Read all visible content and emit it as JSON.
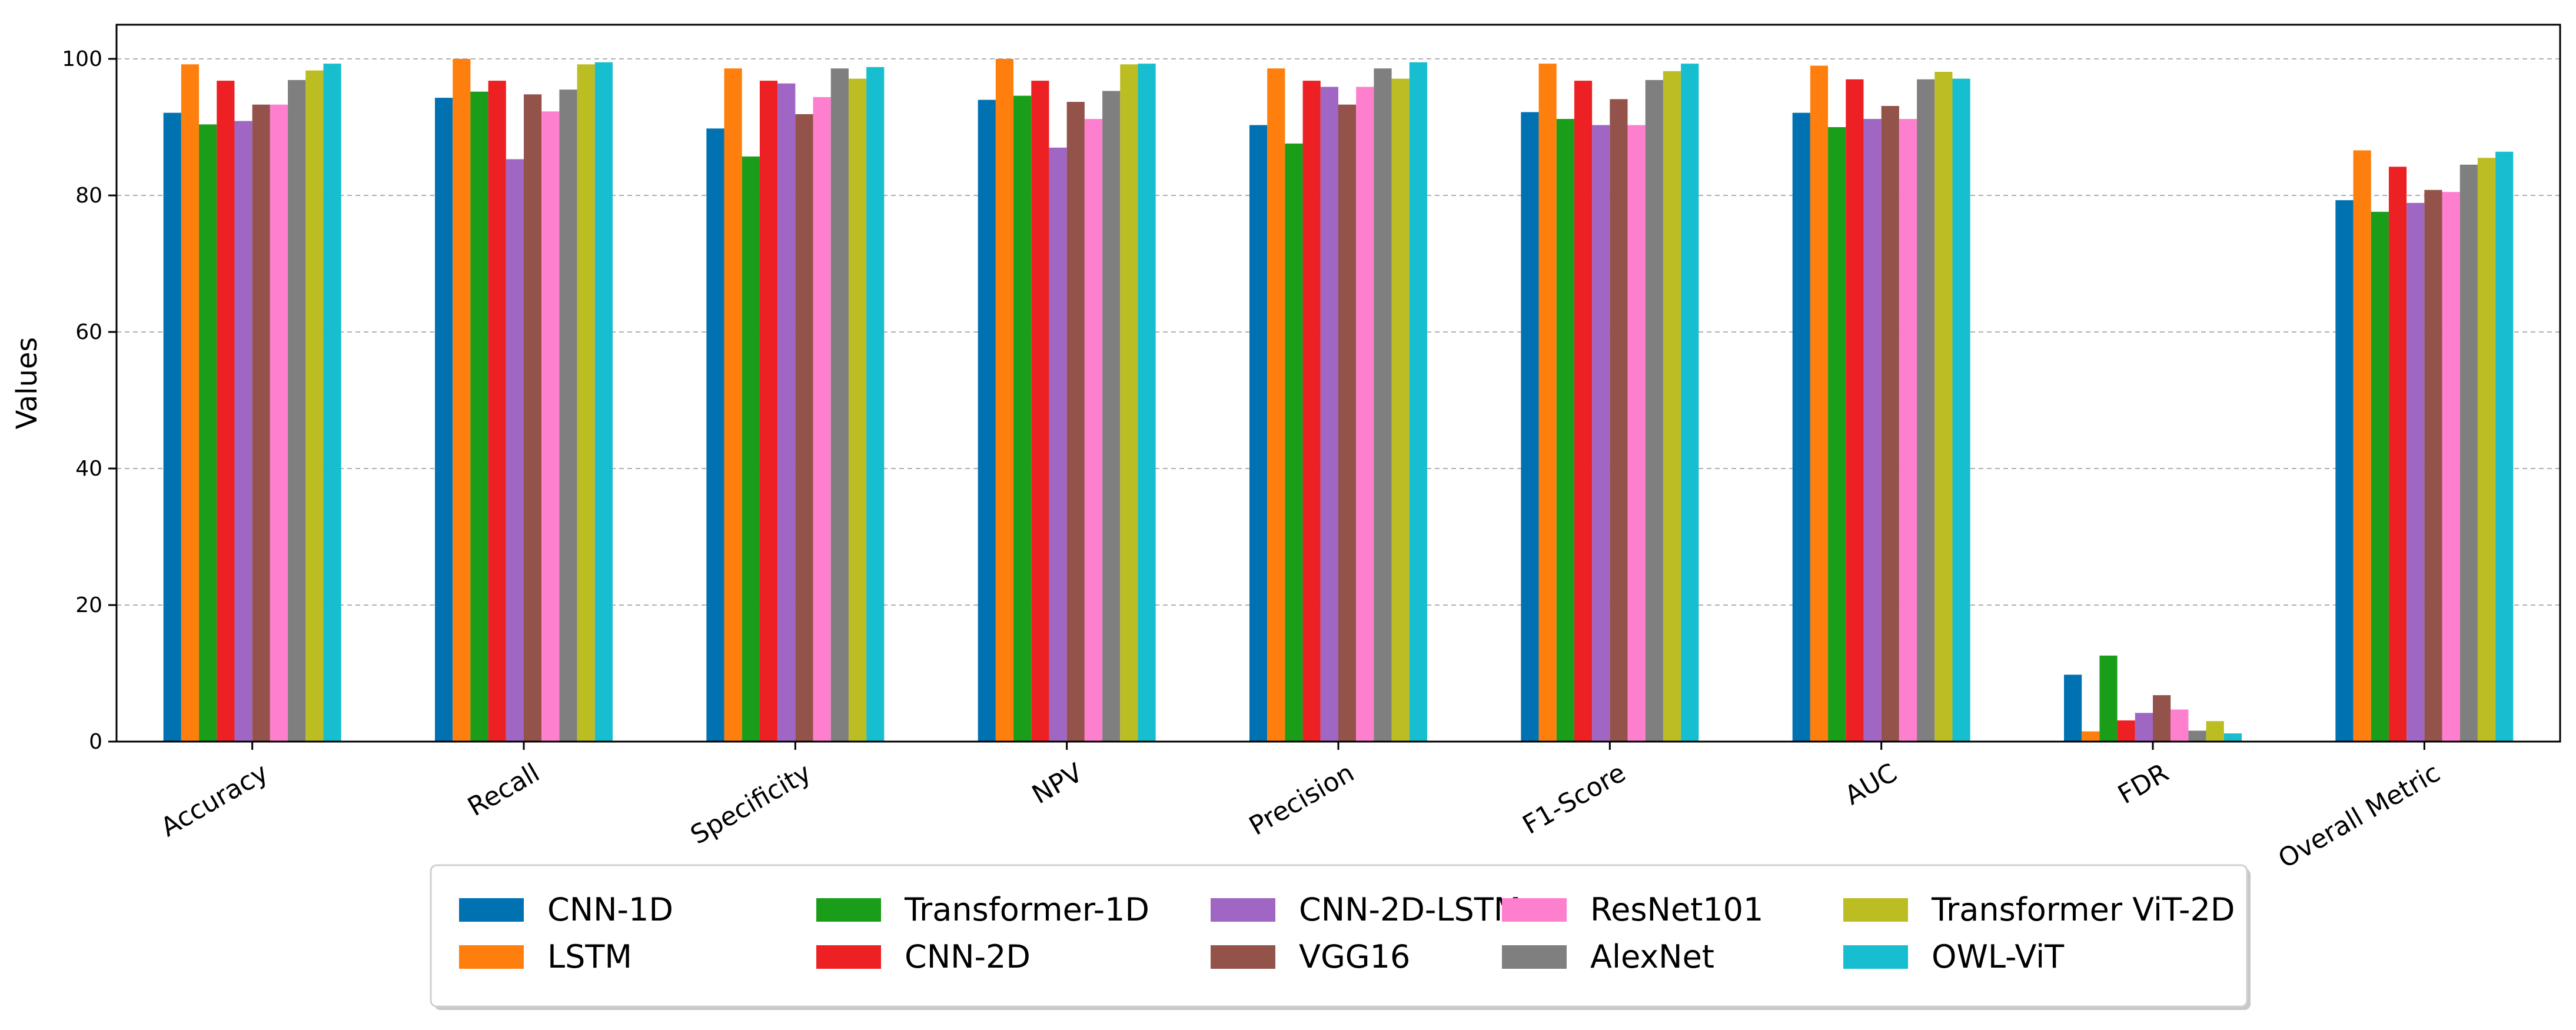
{
  "chart_data": {
    "type": "bar",
    "title": "",
    "xlabel": "",
    "ylabel": "Values",
    "ylim": [
      0,
      105
    ],
    "yticks": [
      0,
      20,
      40,
      60,
      80,
      100
    ],
    "grid": "horizontal dashed",
    "legend_position": "bottom-center",
    "categories": [
      "Accuracy",
      "Recall",
      "Specificity",
      "NPV",
      "Precision",
      "F1-Score",
      "AUC",
      "FDR",
      "Overall Metric"
    ],
    "series": [
      {
        "name": "CNN-1D",
        "color": "#0072b2",
        "values": [
          92.1,
          94.3,
          89.8,
          94.0,
          90.3,
          92.2,
          92.1,
          9.8,
          79.3
        ]
      },
      {
        "name": "LSTM",
        "color": "#ff7f0e",
        "values": [
          99.2,
          100.0,
          98.6,
          100.0,
          98.6,
          99.3,
          99.0,
          1.5,
          86.6
        ]
      },
      {
        "name": "Transformer-1D",
        "color": "#1a9e1a",
        "values": [
          90.4,
          95.2,
          85.7,
          94.6,
          87.6,
          91.2,
          90.0,
          12.6,
          77.6
        ]
      },
      {
        "name": "CNN-2D",
        "color": "#ed2024",
        "values": [
          96.8,
          96.8,
          96.8,
          96.8,
          96.8,
          96.8,
          97.0,
          3.1,
          84.2
        ]
      },
      {
        "name": "CNN-2D-LSTM",
        "color": "#9f66c4",
        "values": [
          90.9,
          85.3,
          96.4,
          87.0,
          95.9,
          90.3,
          91.2,
          4.2,
          78.9
        ]
      },
      {
        "name": "VGG16",
        "color": "#93524a",
        "values": [
          93.3,
          94.8,
          91.9,
          93.7,
          93.3,
          94.1,
          93.1,
          6.8,
          80.8
        ]
      },
      {
        "name": "ResNet101",
        "color": "#ff7fcf",
        "values": [
          93.3,
          92.3,
          94.4,
          91.2,
          95.9,
          90.3,
          91.2,
          4.7,
          80.5
        ]
      },
      {
        "name": "AlexNet",
        "color": "#7f7f7f",
        "values": [
          96.9,
          95.5,
          98.6,
          95.3,
          98.6,
          96.9,
          97.0,
          1.6,
          84.5
        ]
      },
      {
        "name": "Transformer ViT-2D",
        "color": "#bcbd22",
        "values": [
          98.3,
          99.2,
          97.1,
          99.2,
          97.1,
          98.2,
          98.1,
          3.0,
          85.5
        ]
      },
      {
        "name": "OWL-ViT",
        "color": "#17becf",
        "values": [
          99.3,
          99.5,
          98.8,
          99.3,
          99.5,
          99.3,
          97.1,
          1.2,
          86.4
        ]
      }
    ]
  }
}
